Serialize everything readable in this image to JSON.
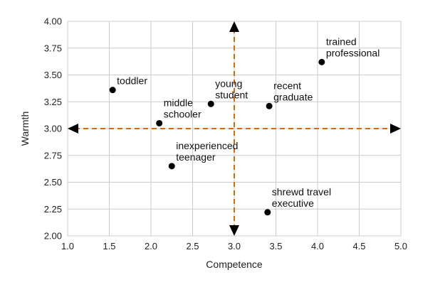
{
  "chart_data": {
    "type": "scatter",
    "xlabel": "Competence",
    "ylabel": "Warmth",
    "xlim": [
      1.0,
      5.0
    ],
    "ylim": [
      2.0,
      4.0
    ],
    "xticks": [
      "1.0",
      "1.5",
      "2.0",
      "2.5",
      "3.0",
      "3.5",
      "4.0",
      "4.5",
      "5.0"
    ],
    "yticks": [
      "2.00",
      "2.25",
      "2.50",
      "2.75",
      "3.00",
      "3.25",
      "3.50",
      "3.75",
      "4.00"
    ],
    "grid": true,
    "reference_lines": {
      "x": 3.0,
      "y": 3.0,
      "color": "#d46a12"
    },
    "points": [
      {
        "label": [
          "toddler"
        ],
        "x": 1.54,
        "y": 3.36
      },
      {
        "label": [
          "middle",
          "schooler"
        ],
        "x": 2.1,
        "y": 3.05
      },
      {
        "label": [
          "young",
          "student"
        ],
        "x": 2.72,
        "y": 3.23
      },
      {
        "label": [
          "recent",
          "graduate"
        ],
        "x": 3.42,
        "y": 3.21
      },
      {
        "label": [
          "trained",
          "professional"
        ],
        "x": 4.05,
        "y": 3.62
      },
      {
        "label": [
          "inexperienced",
          "teenager"
        ],
        "x": 2.25,
        "y": 2.65
      },
      {
        "label": [
          "shrewd travel",
          "executive"
        ],
        "x": 3.4,
        "y": 2.22
      }
    ]
  }
}
